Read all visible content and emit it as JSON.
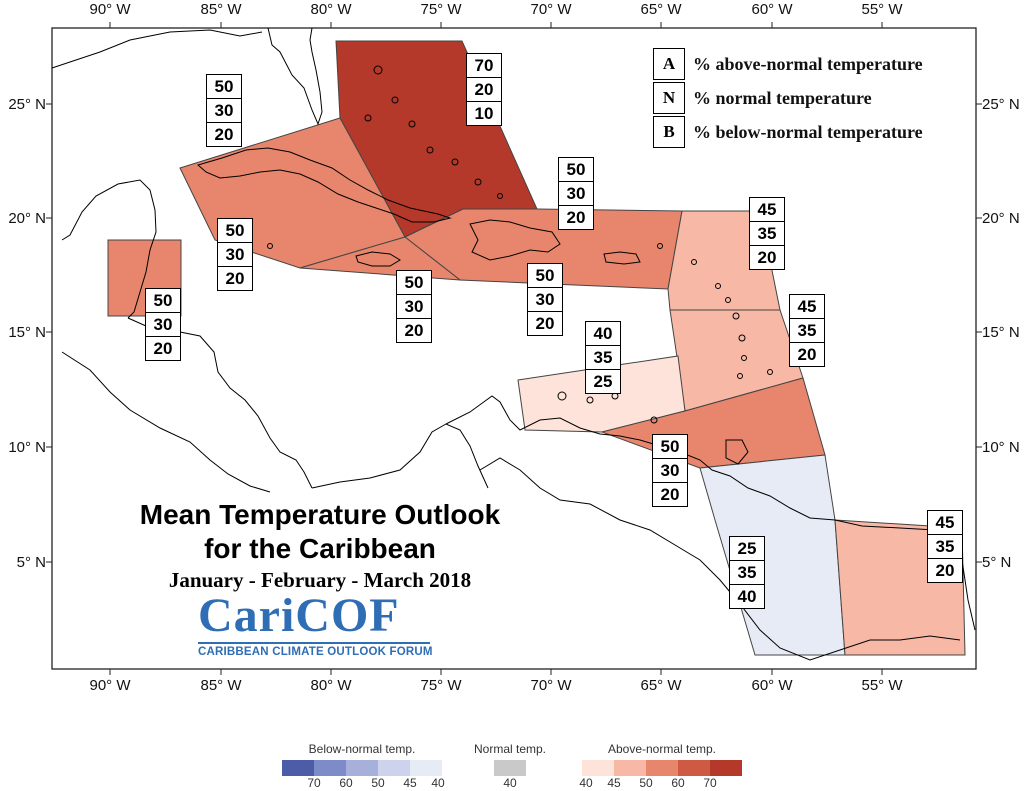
{
  "axes": {
    "lon_labels": [
      "90° W",
      "85° W",
      "80° W",
      "75° W",
      "70° W",
      "65° W",
      "60° W",
      "55° W"
    ],
    "lat_labels": [
      "25° N",
      "20° N",
      "15° N",
      "10° N",
      "5° N"
    ]
  },
  "title": {
    "line1": "Mean Temperature Outlook",
    "line2": "for the Caribbean",
    "subtitle": "January - February - March 2018"
  },
  "logo": {
    "main": "CariCOF",
    "sub": "CARIBBEAN CLIMATE OUTLOOK FORUM"
  },
  "key": [
    {
      "letter": "A",
      "text": "% above-normal temperature"
    },
    {
      "letter": "N",
      "text": "% normal temperature"
    },
    {
      "letter": "B",
      "text": "% below-normal temperature"
    }
  ],
  "colors": {
    "above_70": "#b5392a",
    "above_60": "#cf5a44",
    "above_50": "#e7866d",
    "above_45": "#f7b9a5",
    "above_40": "#fde3da",
    "normal_40": "#c9c9c9",
    "below_40": "#e7ebf6",
    "below_45": "#cdd3ec",
    "below_50": "#a6b0db",
    "below_60": "#7d8bc8",
    "below_70": "#4d5ca6",
    "land_outline": "#000000",
    "region_border": "#444444"
  },
  "regions": [
    {
      "name": "bahamas",
      "above": "70",
      "normal": "20",
      "below": "10",
      "color": "#b5392a"
    },
    {
      "name": "cuba",
      "above": "50",
      "normal": "30",
      "below": "20",
      "color": "#e7866d"
    },
    {
      "name": "cayman",
      "above": "50",
      "normal": "30",
      "below": "20",
      "color": "#e7866d"
    },
    {
      "name": "belize",
      "above": "50",
      "normal": "30",
      "below": "20",
      "color": "#e7866d"
    },
    {
      "name": "jamaica",
      "above": "50",
      "normal": "30",
      "below": "20",
      "color": "#e7866d"
    },
    {
      "name": "hispaniola",
      "above": "50",
      "normal": "30",
      "below": "20",
      "color": "#e7866d"
    },
    {
      "name": "puerto-rico",
      "above": "50",
      "normal": "30",
      "below": "20",
      "color": "#e7866d"
    },
    {
      "name": "leeward-islands",
      "above": "45",
      "normal": "35",
      "below": "20",
      "color": "#f7b9a5"
    },
    {
      "name": "windward-islands",
      "above": "45",
      "normal": "35",
      "below": "20",
      "color": "#f7b9a5"
    },
    {
      "name": "abc-islands",
      "above": "40",
      "normal": "35",
      "below": "25",
      "color": "#fde3da"
    },
    {
      "name": "trinidad",
      "above": "50",
      "normal": "30",
      "below": "20",
      "color": "#e7866d"
    },
    {
      "name": "guyana",
      "above": "25",
      "normal": "35",
      "below": "40",
      "color": "#e7ebf6"
    },
    {
      "name": "suriname-guiana",
      "above": "45",
      "normal": "35",
      "below": "20",
      "color": "#f7b9a5"
    }
  ],
  "legend": {
    "below": {
      "title": "Below-normal temp.",
      "ticks": [
        "70",
        "60",
        "50",
        "45",
        "40"
      ]
    },
    "normal": {
      "title": "Normal temp.",
      "ticks": [
        "40"
      ]
    },
    "above": {
      "title": "Above-normal temp.",
      "ticks": [
        "40",
        "45",
        "50",
        "60",
        "70"
      ]
    }
  }
}
